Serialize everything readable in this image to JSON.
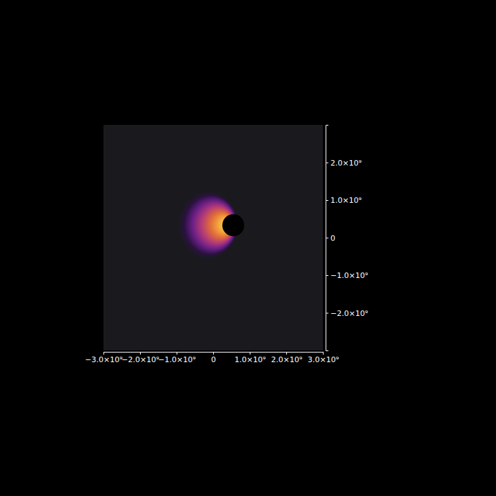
{
  "chart_data": {
    "type": "image",
    "xlim": [
      -3000000000,
      3000000000
    ],
    "ylim": [
      -3000000000,
      3000000000
    ],
    "xticks": [
      {
        "value": -3000000000,
        "label": "−3.0×10⁹"
      },
      {
        "value": -2000000000,
        "label": "−2.0×10⁹"
      },
      {
        "value": -1000000000,
        "label": "−1.0×10⁹"
      },
      0,
      {
        "value": 1000000000,
        "label": "1.0×10⁹"
      },
      {
        "value": 2000000000,
        "label": "2.0×10⁹"
      },
      {
        "value": 3000000000,
        "label": "3.0×10⁹"
      }
    ],
    "yticks": [
      {
        "value": -2000000000,
        "label": "−2.0×10⁹"
      },
      {
        "value": -1000000000,
        "label": "−1.0×10⁹"
      },
      0,
      {
        "value": 1000000000,
        "label": "1.0×10⁹"
      },
      {
        "value": 2000000000,
        "label": "2.0×10⁹"
      }
    ],
    "emission": {
      "x": -140000000,
      "y": 340000000,
      "rx": 820000000,
      "ry": 890000000
    },
    "shadow": {
      "x": 550000000,
      "y": 330000000,
      "r": 300000000
    }
  }
}
